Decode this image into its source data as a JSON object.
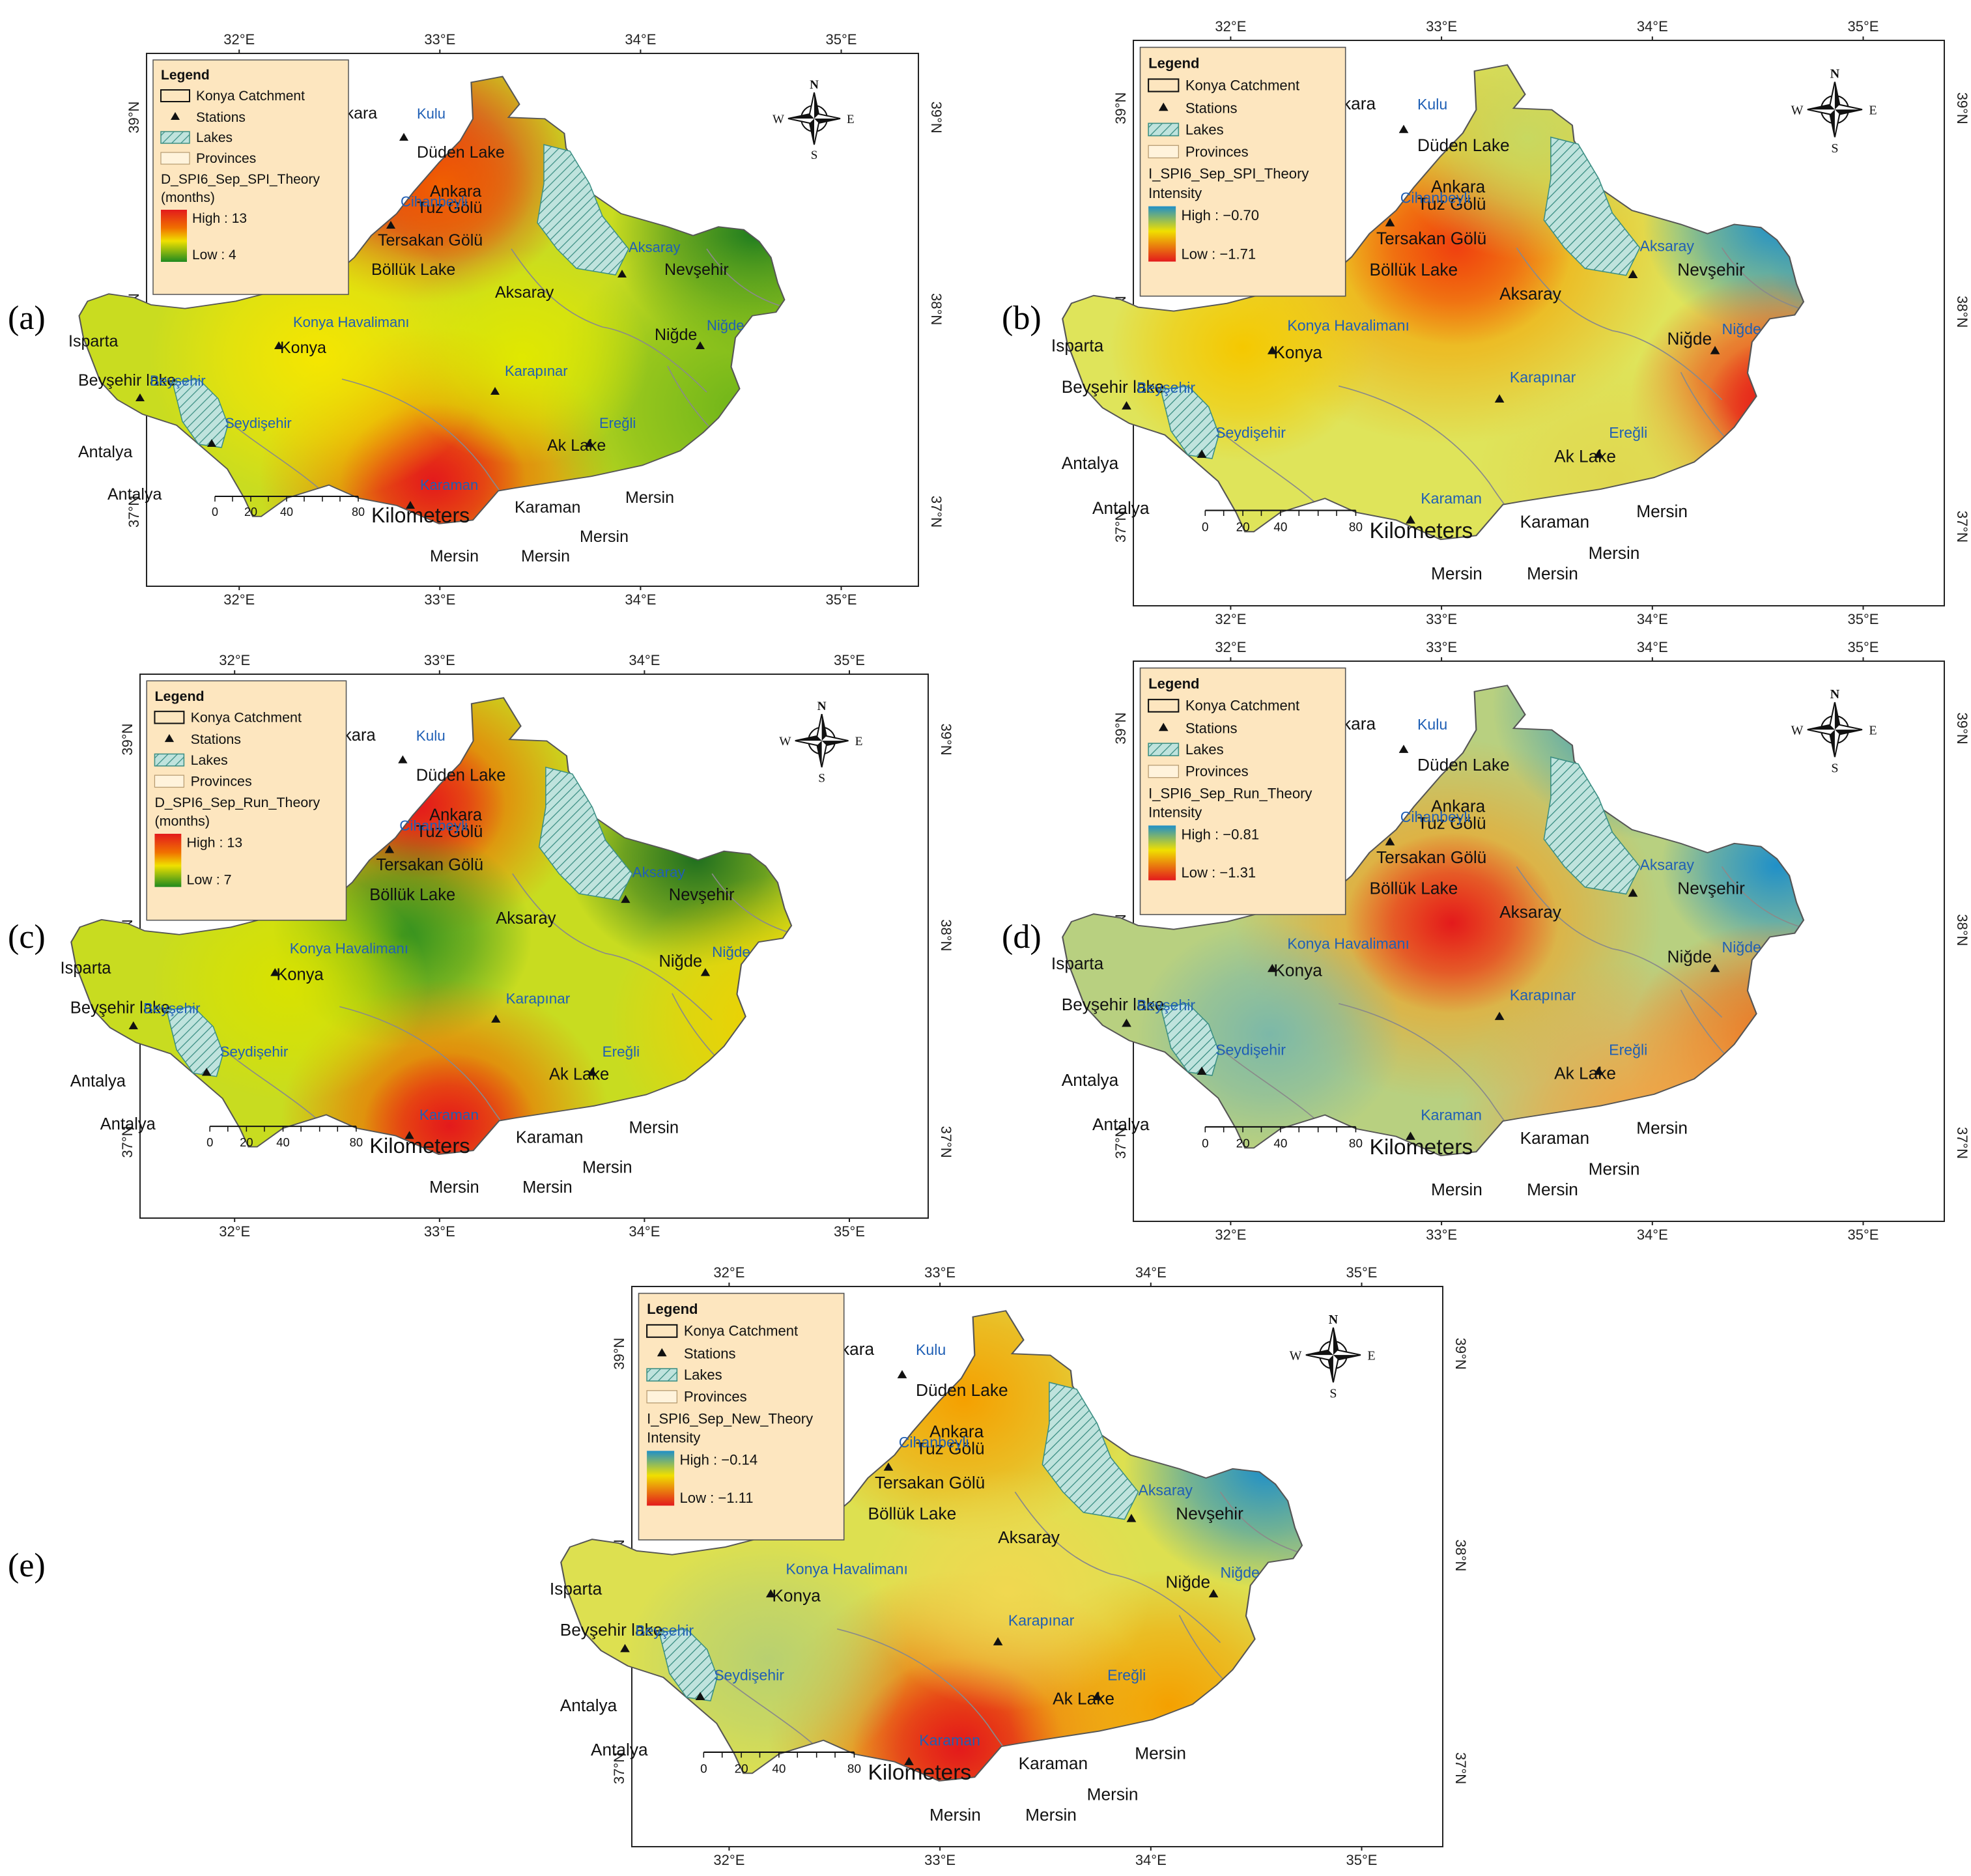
{
  "labels": {
    "legend_title": "Legend",
    "legend_catchment": "Konya Catchment",
    "legend_stations": "Stations",
    "legend_lakes": "Lakes",
    "legend_provinces": "Provinces",
    "kilometers": "Kilometers",
    "scale_ticks": [
      "0",
      "20",
      "40",
      "80"
    ],
    "compass": {
      "n": "N",
      "s": "S",
      "e": "E",
      "w": "W"
    },
    "lon_ticks": [
      "32°E",
      "33°E",
      "34°E",
      "35°E"
    ],
    "lat_ticks": [
      "39°N",
      "38°N",
      "37°N"
    ]
  },
  "colors": {
    "legend_bg": "#fde6bf",
    "lake_fill": "#bfe3dd",
    "station_label": "#1f5fb5",
    "duration_ramp": [
      "#1f8a1f",
      "#d8e800",
      "#f0d000",
      "#f06000",
      "#e31a1c"
    ],
    "intensity_ramp": [
      "#1f8fc8",
      "#f0e000",
      "#e31a1c"
    ]
  },
  "panels": [
    {
      "letter": "(a)",
      "layer": "D_SPI6_Sep_SPI_Theory",
      "unit": "(months)",
      "high": "High : 13",
      "low": "Low : 4",
      "kind": "duration"
    },
    {
      "letter": "(b)",
      "layer": "I_SPI6_Sep_SPI_Theory",
      "unit": "Intensity",
      "high": "High : −0.70",
      "low": "Low : −1.71",
      "kind": "intensity"
    },
    {
      "letter": "(c)",
      "layer": "D_SPI6_Sep_Run_Theory",
      "unit": "(months)",
      "high": "High : 13",
      "low": "Low : 7",
      "kind": "duration"
    },
    {
      "letter": "(d)",
      "layer": "I_SPI6_Sep_Run_Theory",
      "unit": "Intensity",
      "high": "High : −0.81",
      "low": "Low : −1.31",
      "kind": "intensity"
    },
    {
      "letter": "(e)",
      "layer": "I_SPI6_Sep_New_Theory",
      "unit": "Intensity",
      "high": "High : −0.14",
      "low": "Low : −1.11",
      "kind": "intensity"
    }
  ],
  "map_labels": {
    "cities": [
      "Ankara",
      "Ankara",
      "Düden Lake",
      "Tuz Gölü",
      "Tersakan Gölü",
      "Böllük Lake",
      "Aksaray",
      "Nevşehir",
      "Niğde",
      "Konya",
      "Isparta",
      "Beyşehir lake",
      "Ak Lake",
      "Antalya",
      "Antalya",
      "Karaman",
      "Mersin",
      "Mersin",
      "Mersin",
      "Mersin"
    ],
    "stations": [
      "Kulu",
      "Cihanbeyli",
      "Aksaray",
      "Konya Havalimanı",
      "Niğde",
      "Beyşehir",
      "Karapınar",
      "Ereğli",
      "Seydişehir",
      "Karaman"
    ]
  }
}
